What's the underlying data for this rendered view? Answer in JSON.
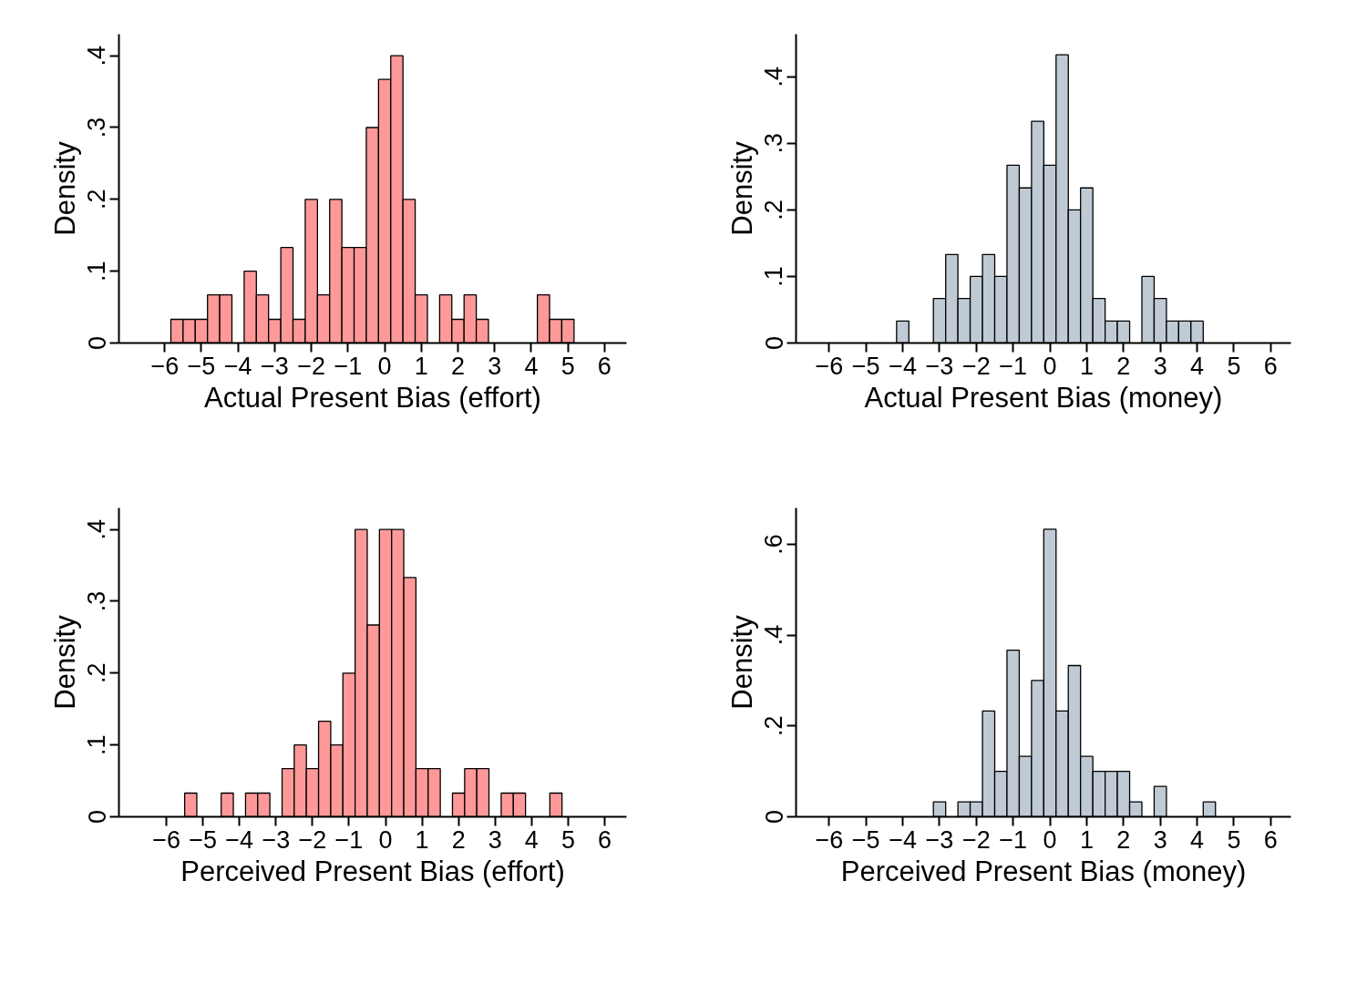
{
  "chart_data": [
    {
      "type": "histogram",
      "xlabel": "Actual Present Bias (effort)",
      "ylabel": "Density",
      "color": "#ff9999",
      "grid": false,
      "bins": [
        -5.833,
        -5.5,
        -5.167,
        -4.833,
        -4.5,
        -4.167,
        -3.833,
        -3.5,
        -3.167,
        -2.833,
        -2.5,
        -2.167,
        -1.833,
        -1.5,
        -1.167,
        -0.833,
        -0.5,
        -0.167,
        0.167,
        0.5,
        0.833,
        1.167,
        1.5,
        1.833,
        2.167,
        2.5,
        2.833,
        3.167,
        3.5,
        3.833,
        4.167,
        4.5,
        4.833,
        5.167
      ],
      "values": [
        0.033,
        0.033,
        0.033,
        0.067,
        0.067,
        0,
        0.1,
        0.067,
        0.033,
        0.133,
        0.033,
        0.2,
        0.067,
        0.2,
        0.133,
        0.133,
        0.3,
        0.367,
        0.4,
        0.2,
        0.067,
        0,
        0.067,
        0.033,
        0.067,
        0.033,
        0,
        0,
        0,
        0,
        0.067,
        0.033,
        0.033
      ],
      "xlim": [
        -7.25,
        6.6
      ],
      "ylim": [
        0,
        0.43
      ],
      "xticks": [
        {
          "value": -6,
          "label": "−6"
        },
        {
          "value": -5,
          "label": "−5"
        },
        {
          "value": -4,
          "label": "−4"
        },
        {
          "value": -3,
          "label": "−3"
        },
        {
          "value": -2,
          "label": "−2"
        },
        {
          "value": -1,
          "label": "−1"
        },
        0,
        1,
        2,
        3,
        4,
        5,
        6
      ],
      "yticks": [
        {
          "value": 0,
          "label": "0"
        },
        {
          "value": 0.1,
          "label": ".1"
        },
        {
          "value": 0.2,
          "label": ".2"
        },
        {
          "value": 0.3,
          "label": ".3"
        },
        {
          "value": 0.4,
          "label": ".4"
        }
      ]
    },
    {
      "type": "histogram",
      "xlabel": "Actual Present Bias (money)",
      "ylabel": "Density",
      "color": "#bfcad5",
      "grid": false,
      "bins": [
        -4.167,
        -3.833,
        -3.5,
        -3.167,
        -2.833,
        -2.5,
        -2.167,
        -1.833,
        -1.5,
        -1.167,
        -0.833,
        -0.5,
        -0.167,
        0.167,
        0.5,
        0.833,
        1.167,
        1.5,
        1.833,
        2.167,
        2.5,
        2.833,
        3.167,
        3.5,
        3.833,
        4.167
      ],
      "values": [
        0.033,
        0,
        0,
        0.067,
        0.133,
        0.067,
        0.1,
        0.133,
        0.1,
        0.267,
        0.233,
        0.333,
        0.267,
        0.433,
        0.2,
        0.233,
        0.067,
        0.033,
        0.033,
        0,
        0.1,
        0.067,
        0.033,
        0.033,
        0.033
      ],
      "xlim": [
        -6.9,
        6.55
      ],
      "ylim": [
        0,
        0.464
      ],
      "xticks": [
        {
          "value": -6,
          "label": "−6"
        },
        {
          "value": -5,
          "label": "−5"
        },
        {
          "value": -4,
          "label": "−4"
        },
        {
          "value": -3,
          "label": "−3"
        },
        {
          "value": -2,
          "label": "−2"
        },
        {
          "value": -1,
          "label": "−1"
        },
        0,
        1,
        2,
        3,
        4,
        5,
        6
      ],
      "yticks": [
        {
          "value": 0,
          "label": "0"
        },
        {
          "value": 0.1,
          "label": ".1"
        },
        {
          "value": 0.2,
          "label": ".2"
        },
        {
          "value": 0.3,
          "label": ".3"
        },
        {
          "value": 0.4,
          "label": ".4"
        }
      ]
    },
    {
      "type": "histogram",
      "xlabel": "Perceived Present Bias (effort)",
      "ylabel": "Density",
      "color": "#ff9999",
      "grid": false,
      "bins": [
        -5.5,
        -5.167,
        -4.833,
        -4.5,
        -4.167,
        -3.833,
        -3.5,
        -3.167,
        -2.833,
        -2.5,
        -2.167,
        -1.833,
        -1.5,
        -1.167,
        -0.833,
        -0.5,
        -0.167,
        0.167,
        0.5,
        0.833,
        1.167,
        1.5,
        1.833,
        2.167,
        2.5,
        2.833,
        3.167,
        3.5,
        3.833,
        4.167,
        4.5,
        4.833
      ],
      "values": [
        0.033,
        0,
        0,
        0.033,
        0,
        0.033,
        0.033,
        0,
        0.067,
        0.1,
        0.067,
        0.133,
        0.1,
        0.2,
        0.4,
        0.267,
        0.4,
        0.4,
        0.333,
        0.067,
        0.067,
        0,
        0.033,
        0.067,
        0.067,
        0,
        0.033,
        0.033,
        0,
        0,
        0.033
      ],
      "xlim": [
        -7.3,
        6.6
      ],
      "ylim": [
        0,
        0.43
      ],
      "xticks": [
        {
          "value": -6,
          "label": "−6"
        },
        {
          "value": -5,
          "label": "−5"
        },
        {
          "value": -4,
          "label": "−4"
        },
        {
          "value": -3,
          "label": "−3"
        },
        {
          "value": -2,
          "label": "−2"
        },
        {
          "value": -1,
          "label": "−1"
        },
        0,
        1,
        2,
        3,
        4,
        5,
        6
      ],
      "yticks": [
        {
          "value": 0,
          "label": "0"
        },
        {
          "value": 0.1,
          "label": ".1"
        },
        {
          "value": 0.2,
          "label": ".2"
        },
        {
          "value": 0.3,
          "label": ".3"
        },
        {
          "value": 0.4,
          "label": ".4"
        }
      ]
    },
    {
      "type": "histogram",
      "xlabel": "Perceived Present Bias (money)",
      "ylabel": "Density",
      "color": "#bfcad5",
      "grid": false,
      "bins": [
        -3.167,
        -2.833,
        -2.5,
        -2.167,
        -1.833,
        -1.5,
        -1.167,
        -0.833,
        -0.5,
        -0.167,
        0.167,
        0.5,
        0.833,
        1.167,
        1.5,
        1.833,
        2.167,
        2.5,
        2.833,
        3.167,
        3.5,
        3.833,
        4.167,
        4.5
      ],
      "values": [
        0.033,
        0,
        0.033,
        0.033,
        0.233,
        0.1,
        0.367,
        0.133,
        0.3,
        0.633,
        0.233,
        0.333,
        0.133,
        0.1,
        0.1,
        0.1,
        0.033,
        0,
        0.067,
        0,
        0,
        0,
        0.033
      ],
      "xlim": [
        -6.9,
        6.55
      ],
      "ylim": [
        0,
        0.68
      ],
      "xticks": [
        {
          "value": -6,
          "label": "−6"
        },
        {
          "value": -5,
          "label": "−5"
        },
        {
          "value": -4,
          "label": "−4"
        },
        {
          "value": -3,
          "label": "−3"
        },
        {
          "value": -2,
          "label": "−2"
        },
        {
          "value": -1,
          "label": "−1"
        },
        0,
        1,
        2,
        3,
        4,
        5,
        6
      ],
      "yticks": [
        {
          "value": 0,
          "label": "0"
        },
        {
          "value": 0.2,
          "label": ".2"
        },
        {
          "value": 0.4,
          "label": ".4"
        },
        {
          "value": 0.6,
          "label": ".6"
        }
      ]
    }
  ]
}
